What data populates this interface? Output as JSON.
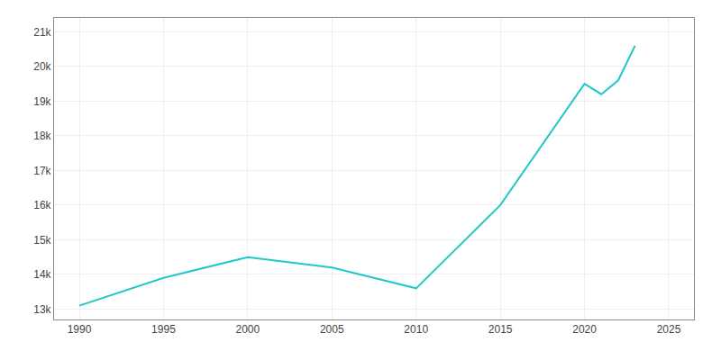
{
  "chart_data": {
    "type": "line",
    "x": [
      1990,
      1995,
      2000,
      2005,
      2010,
      2015,
      2020,
      2021,
      2022,
      2023
    ],
    "values": [
      13100,
      13900,
      14500,
      14200,
      13600,
      16000,
      19500,
      19200,
      19600,
      20600
    ],
    "color": "#22C8C8",
    "xlim": [
      1988.5,
      2026.5
    ],
    "ylim": [
      12700,
      21400
    ],
    "xticks": [
      1990,
      1995,
      2000,
      2005,
      2010,
      2015,
      2020,
      2025
    ],
    "yticks": [
      {
        "value": 13000,
        "label": "13k"
      },
      {
        "value": 14000,
        "label": "14k"
      },
      {
        "value": 15000,
        "label": "15k"
      },
      {
        "value": 16000,
        "label": "16k"
      },
      {
        "value": 17000,
        "label": "17k"
      },
      {
        "value": 18000,
        "label": "18k"
      },
      {
        "value": 19000,
        "label": "19k"
      },
      {
        "value": 20000,
        "label": "20k"
      },
      {
        "value": 21000,
        "label": "21k"
      }
    ],
    "grid": true
  }
}
